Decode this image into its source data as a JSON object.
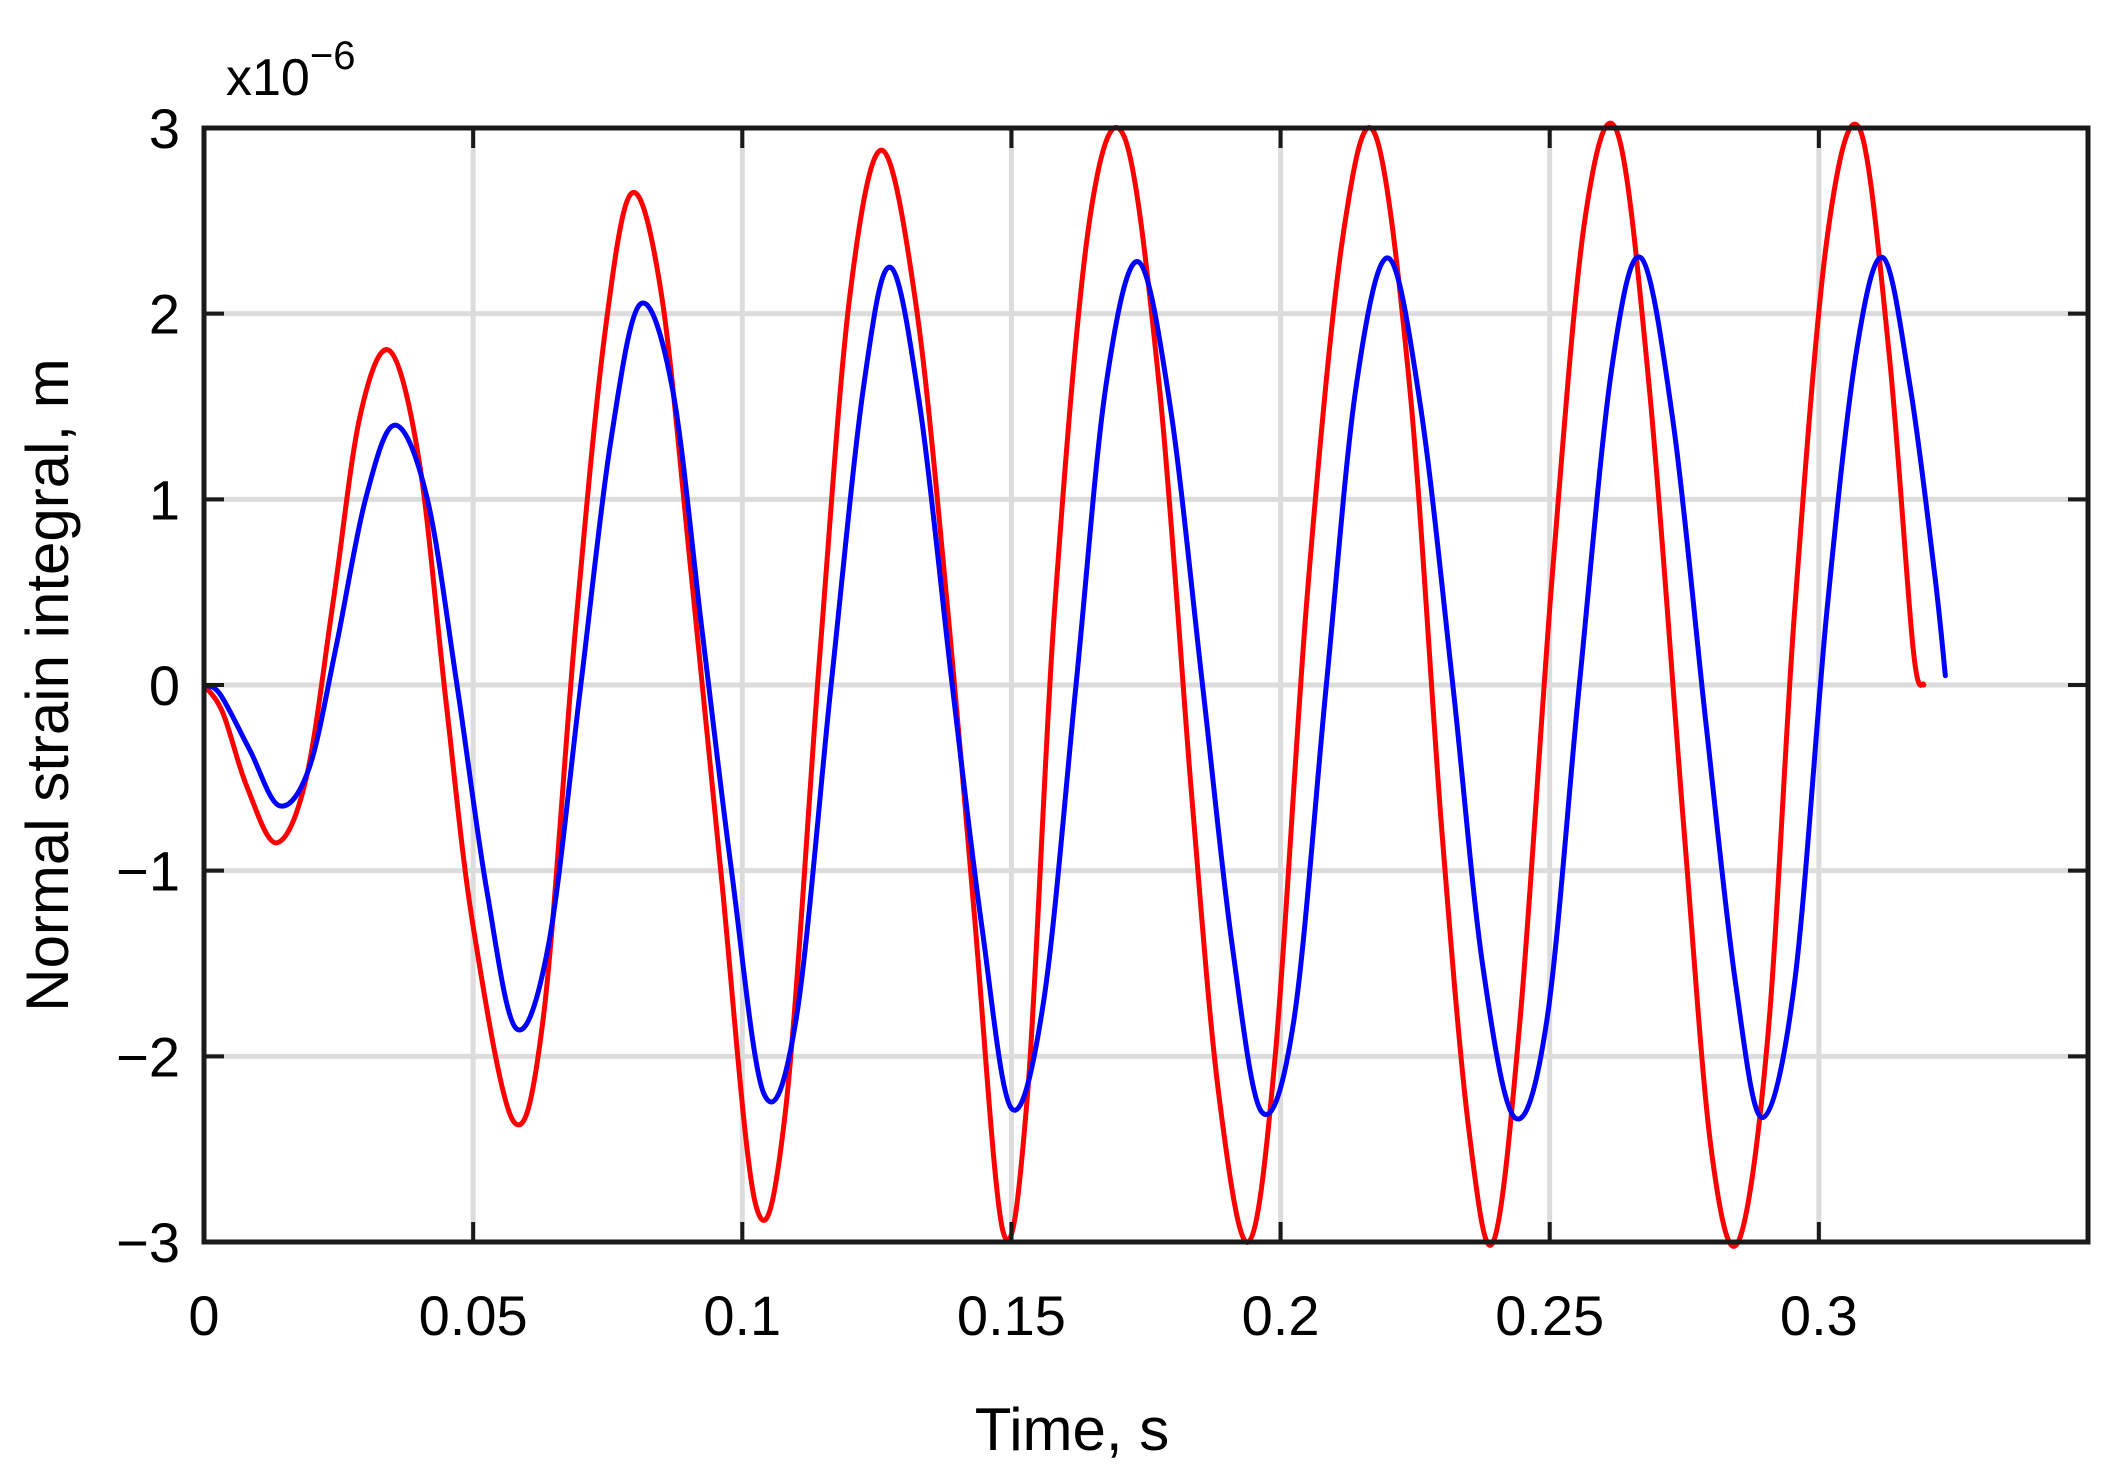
{
  "chart_data": {
    "type": "line",
    "title": "",
    "xlabel": "Time, s",
    "ylabel": "Normal strain integral, m",
    "y_multiplier_label": "x10",
    "y_multiplier_exponent": "−6",
    "xlim": [
      0,
      0.35
    ],
    "ylim": [
      -3,
      3
    ],
    "xticks": [
      0,
      0.05,
      0.1,
      0.15,
      0.2,
      0.25,
      0.3
    ],
    "xtick_labels": [
      "0",
      "0.05",
      "0.1",
      "0.15",
      "0.2",
      "0.25",
      "0.3"
    ],
    "yticks": [
      -3,
      -2,
      -1,
      0,
      1,
      2,
      3
    ],
    "ytick_labels": [
      "−3",
      "−2",
      "−1",
      "0",
      "1",
      "2",
      "3"
    ],
    "grid": true,
    "series": [
      {
        "color": "#ff0000",
        "x": [
          0,
          0.0035,
          0.008,
          0.0135,
          0.019,
          0.024,
          0.029,
          0.0345,
          0.04,
          0.045,
          0.05,
          0.0575,
          0.063,
          0.069,
          0.0745,
          0.0795,
          0.085,
          0.0905,
          0.096,
          0.1025,
          0.108,
          0.1145,
          0.12,
          0.126,
          0.1325,
          0.1385,
          0.143,
          0.1485,
          0.153,
          0.158,
          0.1645,
          0.171,
          0.1775,
          0.1835,
          0.1885,
          0.194,
          0.199,
          0.205,
          0.2115,
          0.2175,
          0.224,
          0.23,
          0.235,
          0.2395,
          0.2445,
          0.2505,
          0.2565,
          0.2625,
          0.2685,
          0.275,
          0.28,
          0.285,
          0.2905,
          0.2955,
          0.3015,
          0.3075,
          0.313,
          0.3175,
          0.3195
        ],
        "values": [
          0,
          -0.15,
          -0.55,
          -0.85,
          -0.5,
          0.45,
          1.45,
          1.8,
          1.2,
          -0.1,
          -1.3,
          -2.35,
          -1.8,
          0.3,
          1.9,
          2.65,
          2.1,
          0.6,
          -1.0,
          -2.8,
          -2.3,
          0.2,
          2.1,
          2.88,
          2.0,
          0.3,
          -1.2,
          -2.95,
          -2.2,
          0.4,
          2.5,
          2.95,
          1.6,
          -0.6,
          -2.2,
          -3.0,
          -2.0,
          0.5,
          2.4,
          2.97,
          1.6,
          -0.8,
          -2.4,
          -3.0,
          -1.8,
          0.6,
          2.5,
          2.98,
          1.6,
          -0.8,
          -2.5,
          -3.0,
          -1.9,
          0.4,
          2.4,
          3.0,
          1.8,
          0.2,
          0
        ]
      },
      {
        "color": "#0000ff",
        "x": [
          0,
          0.003,
          0.0085,
          0.014,
          0.0195,
          0.0245,
          0.03,
          0.0355,
          0.0415,
          0.047,
          0.0525,
          0.058,
          0.064,
          0.07,
          0.0755,
          0.081,
          0.087,
          0.0925,
          0.098,
          0.104,
          0.11,
          0.1165,
          0.1225,
          0.1275,
          0.133,
          0.139,
          0.1445,
          0.15,
          0.156,
          0.162,
          0.1675,
          0.1735,
          0.1795,
          0.1855,
          0.191,
          0.1965,
          0.2025,
          0.2085,
          0.214,
          0.22,
          0.226,
          0.232,
          0.2375,
          0.2435,
          0.2495,
          0.2555,
          0.2615,
          0.267,
          0.273,
          0.279,
          0.2845,
          0.2895,
          0.2955,
          0.3015,
          0.307,
          0.312,
          0.317,
          0.3215,
          0.3235
        ],
        "values": [
          0,
          -0.05,
          -0.35,
          -0.65,
          -0.45,
          0.2,
          1.0,
          1.4,
          1.0,
          0.0,
          -1.1,
          -1.85,
          -1.4,
          0.0,
          1.3,
          2.05,
          1.6,
          0.3,
          -1.0,
          -2.2,
          -1.8,
          0.0,
          1.6,
          2.25,
          1.5,
          0.0,
          -1.3,
          -2.28,
          -1.7,
          0.0,
          1.6,
          2.28,
          1.5,
          0.0,
          -1.4,
          -2.3,
          -1.8,
          0.0,
          1.6,
          2.3,
          1.5,
          0.0,
          -1.5,
          -2.33,
          -1.8,
          0.0,
          1.7,
          2.3,
          1.4,
          -0.2,
          -1.6,
          -2.33,
          -1.6,
          0.4,
          1.8,
          2.3,
          1.6,
          0.6,
          0.05
        ]
      }
    ]
  }
}
